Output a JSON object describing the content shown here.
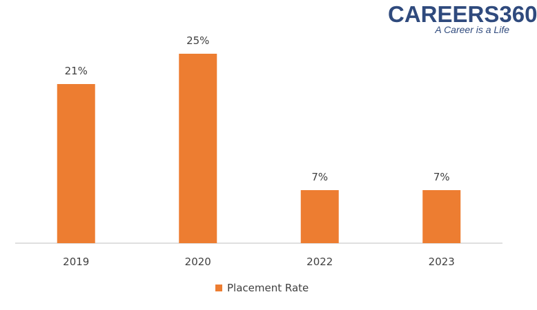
{
  "logo": {
    "name": "CAREERS360",
    "tagline": "A Career is a Life"
  },
  "chart_data": {
    "type": "bar",
    "categories": [
      "2019",
      "2020",
      "2022",
      "2023"
    ],
    "series": [
      {
        "name": "Placement Rate",
        "values": [
          21,
          25,
          7,
          7
        ],
        "data_labels": [
          "21%",
          "25%",
          "7%",
          "7%"
        ],
        "color": "#ed7d31"
      }
    ],
    "title": "",
    "xlabel": "",
    "ylabel": "",
    "ylim": [
      0,
      30
    ],
    "grid": false,
    "legend": "bottom-center"
  },
  "colors": {
    "bar": "#ed7d31",
    "axis": "#bfbfbf",
    "text": "#404040",
    "logo": "#2f4a7d"
  }
}
